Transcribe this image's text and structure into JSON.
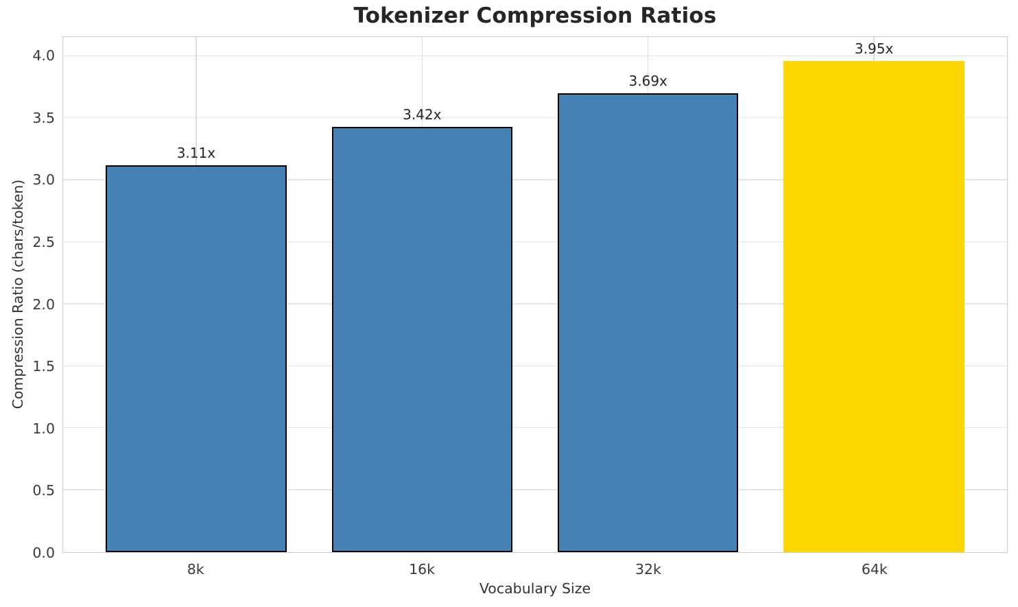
{
  "chart_data": {
    "type": "bar",
    "title": "Tokenizer Compression Ratios",
    "xlabel": "Vocabulary Size",
    "ylabel": "Compression Ratio (chars/token)",
    "categories": [
      "8k",
      "16k",
      "32k",
      "64k"
    ],
    "values": [
      3.11,
      3.42,
      3.69,
      3.95
    ],
    "bar_labels": [
      "3.11x",
      "3.42x",
      "3.69x",
      "3.95x"
    ],
    "bar_colors": [
      "#4682B4",
      "#4682B4",
      "#4682B4",
      "#FFD700"
    ],
    "bar_edge_colors": [
      "#000000",
      "#000000",
      "#000000",
      "none"
    ],
    "highlight_index": 3,
    "ylim": [
      0,
      4.155
    ],
    "yticks": [
      0,
      0.5,
      1,
      1.5,
      2,
      2.5,
      3,
      3.5,
      4
    ],
    "ytick_labels": [
      "0.0",
      "0.5",
      "1.0",
      "1.5",
      "2.0",
      "2.5",
      "3.0",
      "3.5",
      "4.0"
    ],
    "grid": true,
    "legend_position": "none",
    "colors": {
      "bar": "#4682B4",
      "highlight": "#FFD700",
      "edge": "#000000",
      "hgrid": "#e4e4e4",
      "vgrid": "#dcdcdc",
      "spine": "#cdcdcd",
      "title_text": "#262626",
      "tick_text": "#3a3a3a"
    }
  }
}
